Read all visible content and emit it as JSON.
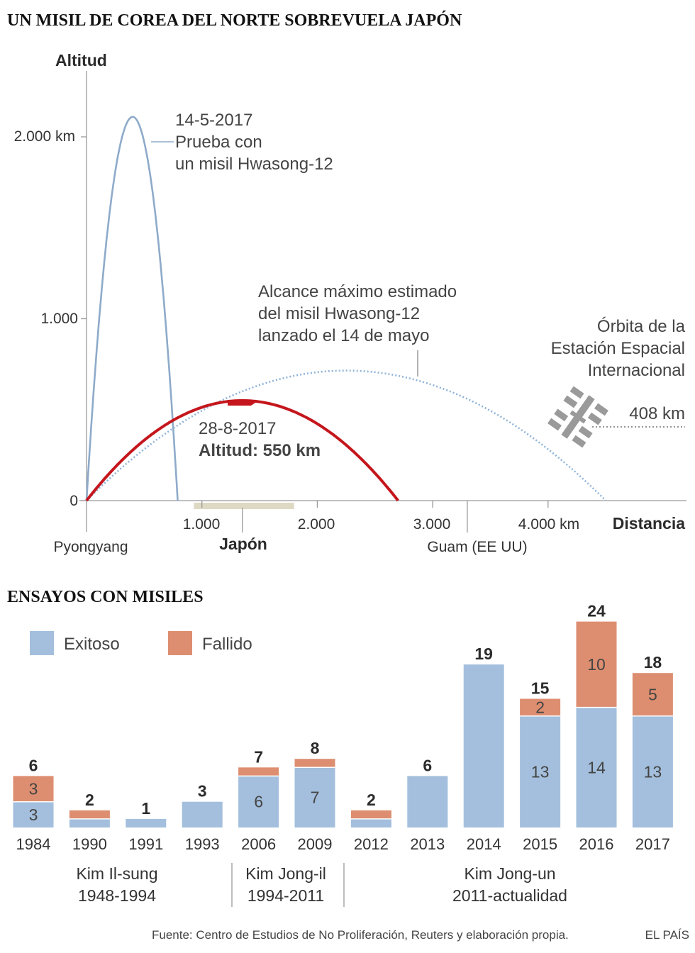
{
  "trajectory": {
    "title": "UN MISIL DE COREA DEL NORTE SOBREVUELA JAPÓN",
    "ylabel": "Altitud",
    "xlabel": "Distancia",
    "y_ticks": [
      "0",
      "1.000",
      "2.000 km"
    ],
    "x_ticks": [
      "1.000",
      "2.000",
      "3.000",
      "4.000 km"
    ],
    "places": {
      "origin": "Pyongyang",
      "japan": "Japón",
      "guam": "Guam (EE UU)"
    },
    "annotations": {
      "test_date": "14-5-2017",
      "test_line1": "Prueba con",
      "test_line2": "un misil Hwasong-12",
      "range_line1": "Alcance máximo estimado",
      "range_line2": "del misil Hwasong-12",
      "range_line3": "lanzado el 14 de mayo",
      "iss_line1": "Órbita de la",
      "iss_line2": "Estación Espacial",
      "iss_line3": "Internacional",
      "iss_alt": "408 km",
      "launch_date": "28-8-2017",
      "launch_alt": "Altitud: 550 km"
    },
    "colors": {
      "test": "#8eabca",
      "range": "#8eb3d8",
      "launch": "#c4161c",
      "japan": "#ddd9c3",
      "axis": "#999999"
    }
  },
  "tests": {
    "title": "ENSAYOS CON MISILES",
    "legend": {
      "success": "Exitoso",
      "fail": "Fallido"
    },
    "leaders": [
      {
        "line1": "Kim Il-sung",
        "line2": "1948-1994"
      },
      {
        "line1": "Kim Jong-il",
        "line2": "1994-2011"
      },
      {
        "line1": "Kim Jong-un",
        "line2": "2011-actualidad"
      }
    ]
  },
  "chart_data": [
    {
      "type": "line",
      "title": "UN MISIL DE COREA DEL NORTE SOBREVUELA JAPÓN",
      "xlabel": "Distancia",
      "ylabel": "Altitud",
      "x_unit": "km",
      "y_unit": "km",
      "xlim": [
        0,
        5200
      ],
      "ylim": [
        0,
        2200
      ],
      "series": [
        {
          "name": "14-5-2017 Prueba con un misil Hwasong-12",
          "apex_x": 400,
          "peak_altitude": 2110,
          "end_x": 790
        },
        {
          "name": "Alcance máximo estimado del misil Hwasong-12 lanzado el 14 de mayo",
          "apex_x": 2250,
          "peak_altitude": 715,
          "end_x": 4500
        },
        {
          "name": "28-8-2017",
          "apex_x": 1350,
          "peak_altitude": 550,
          "end_x": 2700
        },
        {
          "name": "Órbita de la Estación Espacial Internacional",
          "altitude": 408
        }
      ],
      "places": [
        {
          "name": "Pyongyang",
          "x": 0
        },
        {
          "name": "Japón",
          "x_range": [
            930,
            1800
          ]
        },
        {
          "name": "Guam (EE UU)",
          "x": 3300
        }
      ]
    },
    {
      "type": "bar",
      "stacked": true,
      "title": "ENSAYOS CON MISILES",
      "categories": [
        "1984",
        "1990",
        "1991",
        "1993",
        "2006",
        "2009",
        "2012",
        "2013",
        "2014",
        "2015",
        "2016",
        "2017"
      ],
      "series": [
        {
          "name": "Exitoso",
          "color": "#a3bfdd",
          "values": [
            3,
            1,
            1,
            3,
            6,
            7,
            1,
            6,
            19,
            13,
            14,
            13
          ]
        },
        {
          "name": "Fallido",
          "color": "#dd8e70",
          "values": [
            3,
            1,
            0,
            0,
            1,
            1,
            1,
            0,
            0,
            2,
            10,
            5
          ]
        }
      ],
      "totals": [
        6,
        2,
        1,
        3,
        7,
        8,
        2,
        6,
        19,
        15,
        24,
        18
      ],
      "segment_labels": {
        "success": [
          "3",
          "",
          "",
          "",
          "6",
          "7",
          "",
          "",
          "",
          "13",
          "14",
          "13"
        ],
        "fail": [
          "3",
          "",
          "",
          "",
          "",
          "",
          "",
          "",
          "",
          "2",
          "10",
          "5"
        ]
      }
    }
  ],
  "footer": {
    "source": "Fuente: Centro de Estudios de No Proliferación, Reuters y elaboración propia.",
    "brand": "EL PAÍS"
  }
}
